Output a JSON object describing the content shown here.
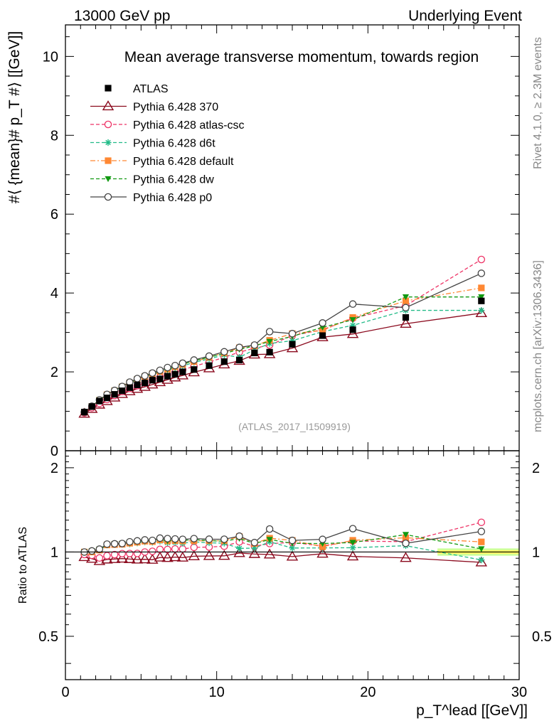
{
  "header": {
    "left": "13000 GeV pp",
    "right": "Underlying Event"
  },
  "side_labels": {
    "top": "Rivet 4.1.0, ≥ 2.3M events",
    "bottom": "mcplots.cern.ch [arXiv:1306.3436]"
  },
  "watermark": "(ATLAS_2017_I1509919)",
  "colors": {
    "atlas": "#000000",
    "p370": "#8b0a1e",
    "atlas_csc": "#ee3366",
    "d6t": "#22bb88",
    "default": "#ff8833",
    "dw": "#119911",
    "p0": "#444444",
    "band_green": "#ccff99",
    "band_yellow": "#ffff66"
  },
  "chart_data": {
    "type": "scatter",
    "title": "Mean average transverse momentum, towards region",
    "xlabel": "p_T^lead [[GeV]]",
    "ylabel": "#⟨ {mean}# p_T #⟩ [[GeV]]",
    "ratio_ylabel": "Ratio to ATLAS",
    "xlim": [
      0,
      30
    ],
    "ylim": [
      0,
      10.8
    ],
    "ratio_ylim": [
      0.35,
      2.3
    ],
    "x_ticks": [
      "0",
      "10",
      "20",
      "30"
    ],
    "y_ticks": [
      "0",
      "2",
      "4",
      "6",
      "8",
      "10"
    ],
    "ratio_ticks": [
      "0.5",
      "1",
      "2"
    ],
    "x": [
      1.25,
      1.75,
      2.25,
      2.75,
      3.25,
      3.75,
      4.25,
      4.75,
      5.25,
      5.75,
      6.25,
      6.75,
      7.25,
      7.75,
      8.5,
      9.5,
      10.5,
      11.5,
      12.5,
      13.5,
      15.0,
      17.0,
      19.0,
      22.5,
      27.5
    ],
    "series": [
      {
        "name": "ATLAS",
        "key": "atlas",
        "marker": "square",
        "line": "none",
        "values": [
          0.98,
          1.12,
          1.26,
          1.34,
          1.43,
          1.52,
          1.6,
          1.67,
          1.72,
          1.79,
          1.82,
          1.89,
          1.94,
          2.0,
          2.06,
          2.16,
          2.26,
          2.3,
          2.48,
          2.5,
          2.7,
          2.92,
          3.07,
          3.38,
          3.8
        ]
      },
      {
        "name": "Pythia 6.428 370",
        "key": "p370",
        "marker": "triangle-open",
        "line": "solid",
        "values": [
          0.94,
          1.06,
          1.17,
          1.26,
          1.35,
          1.44,
          1.51,
          1.57,
          1.62,
          1.68,
          1.74,
          1.8,
          1.86,
          1.91,
          1.99,
          2.09,
          2.19,
          2.28,
          2.44,
          2.45,
          2.6,
          2.88,
          2.96,
          3.22,
          3.49
        ]
      },
      {
        "name": "Pythia 6.428 atlas-csc",
        "key": "atlas_csc",
        "marker": "circle-open",
        "line": "dash",
        "values": [
          0.96,
          1.09,
          1.2,
          1.3,
          1.4,
          1.5,
          1.58,
          1.65,
          1.72,
          1.8,
          1.86,
          1.93,
          1.99,
          2.05,
          2.14,
          2.25,
          2.37,
          2.5,
          2.6,
          2.68,
          2.92,
          3.07,
          3.36,
          3.68,
          4.85
        ]
      },
      {
        "name": "Pythia 6.428 d6t",
        "key": "d6t",
        "marker": "star",
        "line": "dash",
        "values": [
          0.98,
          1.12,
          1.28,
          1.42,
          1.52,
          1.62,
          1.71,
          1.8,
          1.87,
          1.94,
          1.99,
          2.04,
          2.1,
          2.15,
          2.24,
          2.33,
          2.43,
          2.37,
          2.56,
          2.72,
          2.79,
          3.02,
          3.18,
          3.56,
          3.56
        ]
      },
      {
        "name": "Pythia 6.428 default",
        "key": "default",
        "marker": "square",
        "line": "dashdot",
        "values": [
          0.98,
          1.12,
          1.28,
          1.42,
          1.52,
          1.62,
          1.72,
          1.81,
          1.88,
          1.95,
          2.01,
          2.07,
          2.13,
          2.19,
          2.26,
          2.37,
          2.48,
          2.61,
          2.66,
          2.8,
          2.97,
          3.05,
          3.38,
          3.8,
          4.13
        ]
      },
      {
        "name": "Pythia 6.428 dw",
        "key": "dw",
        "marker": "triangle-down",
        "line": "dash",
        "values": [
          0.98,
          1.13,
          1.29,
          1.42,
          1.53,
          1.63,
          1.73,
          1.82,
          1.89,
          1.96,
          2.02,
          2.07,
          2.13,
          2.2,
          2.28,
          2.37,
          2.47,
          2.57,
          2.66,
          2.77,
          2.9,
          3.13,
          3.32,
          3.9,
          3.9
        ]
      },
      {
        "name": "Pythia 6.428 p0",
        "key": "p0",
        "marker": "circle-open",
        "line": "solid",
        "values": [
          0.98,
          1.13,
          1.29,
          1.43,
          1.53,
          1.63,
          1.74,
          1.83,
          1.9,
          1.97,
          2.04,
          2.11,
          2.16,
          2.22,
          2.3,
          2.4,
          2.51,
          2.62,
          2.68,
          3.02,
          2.97,
          3.24,
          3.72,
          3.63,
          4.5
        ]
      }
    ]
  }
}
